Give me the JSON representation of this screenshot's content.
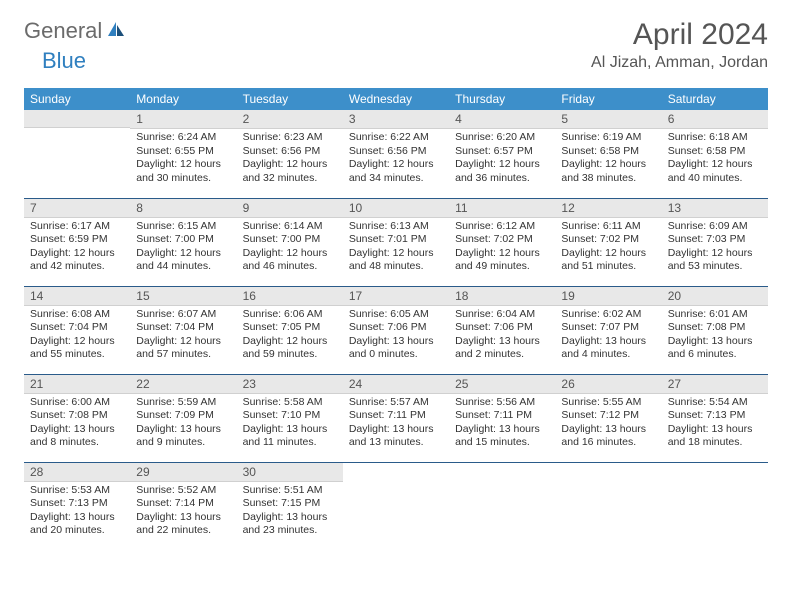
{
  "logo": {
    "text1": "General",
    "text2": "Blue"
  },
  "title": "April 2024",
  "location": "Al Jizah, Amman, Jordan",
  "day_headers": [
    "Sunday",
    "Monday",
    "Tuesday",
    "Wednesday",
    "Thursday",
    "Friday",
    "Saturday"
  ],
  "colors": {
    "header_bg": "#3d8fca",
    "daynum_bg": "#e8e8e8",
    "row_border": "#2a5b8a",
    "logo_gray": "#6b6b6b",
    "logo_blue": "#2f7fbf"
  },
  "weeks": [
    [
      {
        "n": "",
        "sr": "",
        "ss": "",
        "d1": "",
        "d2": ""
      },
      {
        "n": "1",
        "sr": "Sunrise: 6:24 AM",
        "ss": "Sunset: 6:55 PM",
        "d1": "Daylight: 12 hours",
        "d2": "and 30 minutes."
      },
      {
        "n": "2",
        "sr": "Sunrise: 6:23 AM",
        "ss": "Sunset: 6:56 PM",
        "d1": "Daylight: 12 hours",
        "d2": "and 32 minutes."
      },
      {
        "n": "3",
        "sr": "Sunrise: 6:22 AM",
        "ss": "Sunset: 6:56 PM",
        "d1": "Daylight: 12 hours",
        "d2": "and 34 minutes."
      },
      {
        "n": "4",
        "sr": "Sunrise: 6:20 AM",
        "ss": "Sunset: 6:57 PM",
        "d1": "Daylight: 12 hours",
        "d2": "and 36 minutes."
      },
      {
        "n": "5",
        "sr": "Sunrise: 6:19 AM",
        "ss": "Sunset: 6:58 PM",
        "d1": "Daylight: 12 hours",
        "d2": "and 38 minutes."
      },
      {
        "n": "6",
        "sr": "Sunrise: 6:18 AM",
        "ss": "Sunset: 6:58 PM",
        "d1": "Daylight: 12 hours",
        "d2": "and 40 minutes."
      }
    ],
    [
      {
        "n": "7",
        "sr": "Sunrise: 6:17 AM",
        "ss": "Sunset: 6:59 PM",
        "d1": "Daylight: 12 hours",
        "d2": "and 42 minutes."
      },
      {
        "n": "8",
        "sr": "Sunrise: 6:15 AM",
        "ss": "Sunset: 7:00 PM",
        "d1": "Daylight: 12 hours",
        "d2": "and 44 minutes."
      },
      {
        "n": "9",
        "sr": "Sunrise: 6:14 AM",
        "ss": "Sunset: 7:00 PM",
        "d1": "Daylight: 12 hours",
        "d2": "and 46 minutes."
      },
      {
        "n": "10",
        "sr": "Sunrise: 6:13 AM",
        "ss": "Sunset: 7:01 PM",
        "d1": "Daylight: 12 hours",
        "d2": "and 48 minutes."
      },
      {
        "n": "11",
        "sr": "Sunrise: 6:12 AM",
        "ss": "Sunset: 7:02 PM",
        "d1": "Daylight: 12 hours",
        "d2": "and 49 minutes."
      },
      {
        "n": "12",
        "sr": "Sunrise: 6:11 AM",
        "ss": "Sunset: 7:02 PM",
        "d1": "Daylight: 12 hours",
        "d2": "and 51 minutes."
      },
      {
        "n": "13",
        "sr": "Sunrise: 6:09 AM",
        "ss": "Sunset: 7:03 PM",
        "d1": "Daylight: 12 hours",
        "d2": "and 53 minutes."
      }
    ],
    [
      {
        "n": "14",
        "sr": "Sunrise: 6:08 AM",
        "ss": "Sunset: 7:04 PM",
        "d1": "Daylight: 12 hours",
        "d2": "and 55 minutes."
      },
      {
        "n": "15",
        "sr": "Sunrise: 6:07 AM",
        "ss": "Sunset: 7:04 PM",
        "d1": "Daylight: 12 hours",
        "d2": "and 57 minutes."
      },
      {
        "n": "16",
        "sr": "Sunrise: 6:06 AM",
        "ss": "Sunset: 7:05 PM",
        "d1": "Daylight: 12 hours",
        "d2": "and 59 minutes."
      },
      {
        "n": "17",
        "sr": "Sunrise: 6:05 AM",
        "ss": "Sunset: 7:06 PM",
        "d1": "Daylight: 13 hours",
        "d2": "and 0 minutes."
      },
      {
        "n": "18",
        "sr": "Sunrise: 6:04 AM",
        "ss": "Sunset: 7:06 PM",
        "d1": "Daylight: 13 hours",
        "d2": "and 2 minutes."
      },
      {
        "n": "19",
        "sr": "Sunrise: 6:02 AM",
        "ss": "Sunset: 7:07 PM",
        "d1": "Daylight: 13 hours",
        "d2": "and 4 minutes."
      },
      {
        "n": "20",
        "sr": "Sunrise: 6:01 AM",
        "ss": "Sunset: 7:08 PM",
        "d1": "Daylight: 13 hours",
        "d2": "and 6 minutes."
      }
    ],
    [
      {
        "n": "21",
        "sr": "Sunrise: 6:00 AM",
        "ss": "Sunset: 7:08 PM",
        "d1": "Daylight: 13 hours",
        "d2": "and 8 minutes."
      },
      {
        "n": "22",
        "sr": "Sunrise: 5:59 AM",
        "ss": "Sunset: 7:09 PM",
        "d1": "Daylight: 13 hours",
        "d2": "and 9 minutes."
      },
      {
        "n": "23",
        "sr": "Sunrise: 5:58 AM",
        "ss": "Sunset: 7:10 PM",
        "d1": "Daylight: 13 hours",
        "d2": "and 11 minutes."
      },
      {
        "n": "24",
        "sr": "Sunrise: 5:57 AM",
        "ss": "Sunset: 7:11 PM",
        "d1": "Daylight: 13 hours",
        "d2": "and 13 minutes."
      },
      {
        "n": "25",
        "sr": "Sunrise: 5:56 AM",
        "ss": "Sunset: 7:11 PM",
        "d1": "Daylight: 13 hours",
        "d2": "and 15 minutes."
      },
      {
        "n": "26",
        "sr": "Sunrise: 5:55 AM",
        "ss": "Sunset: 7:12 PM",
        "d1": "Daylight: 13 hours",
        "d2": "and 16 minutes."
      },
      {
        "n": "27",
        "sr": "Sunrise: 5:54 AM",
        "ss": "Sunset: 7:13 PM",
        "d1": "Daylight: 13 hours",
        "d2": "and 18 minutes."
      }
    ],
    [
      {
        "n": "28",
        "sr": "Sunrise: 5:53 AM",
        "ss": "Sunset: 7:13 PM",
        "d1": "Daylight: 13 hours",
        "d2": "and 20 minutes."
      },
      {
        "n": "29",
        "sr": "Sunrise: 5:52 AM",
        "ss": "Sunset: 7:14 PM",
        "d1": "Daylight: 13 hours",
        "d2": "and 22 minutes."
      },
      {
        "n": "30",
        "sr": "Sunrise: 5:51 AM",
        "ss": "Sunset: 7:15 PM",
        "d1": "Daylight: 13 hours",
        "d2": "and 23 minutes."
      },
      {
        "n": "",
        "sr": "",
        "ss": "",
        "d1": "",
        "d2": ""
      },
      {
        "n": "",
        "sr": "",
        "ss": "",
        "d1": "",
        "d2": ""
      },
      {
        "n": "",
        "sr": "",
        "ss": "",
        "d1": "",
        "d2": ""
      },
      {
        "n": "",
        "sr": "",
        "ss": "",
        "d1": "",
        "d2": ""
      }
    ]
  ]
}
